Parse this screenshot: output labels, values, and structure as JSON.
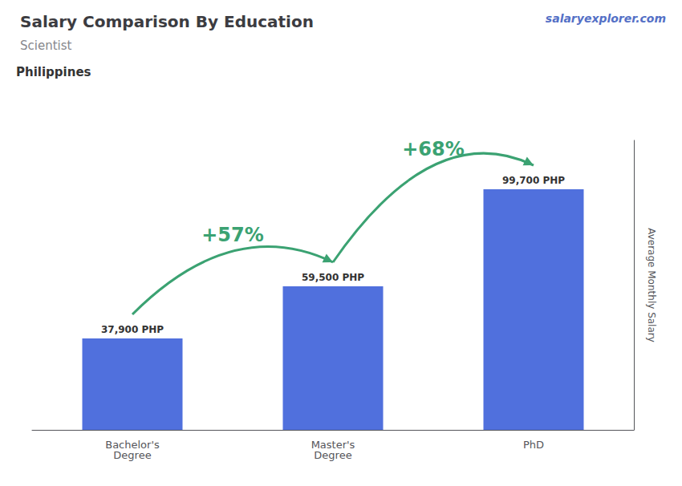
{
  "chart_data": {
    "type": "bar",
    "title": "Salary Comparison By Education",
    "subtitle": "Scientist",
    "ylabel": "Average Monthly Salary",
    "categories": [
      "Bachelor's\nDegree",
      "Master's\nDegree",
      "PhD"
    ],
    "values": [
      37900,
      59500,
      99700
    ],
    "value_labels": [
      "37,900 PHP",
      "59,500 PHP",
      "99,700 PHP"
    ],
    "data_labels": true,
    "ylim": [
      0,
      120000
    ],
    "yticks": [],
    "tick_labels": "x",
    "grid": false,
    "annotations": [
      {
        "text": "Philippines"
      },
      {
        "text": "salaryexplorer.com"
      },
      {
        "text": "+57%",
        "from": "Bachelor's\nDegree",
        "to": "Master's\nDegree"
      },
      {
        "text": "+68%",
        "from": "Master's\nDegree",
        "to": "PhD"
      }
    ]
  }
}
